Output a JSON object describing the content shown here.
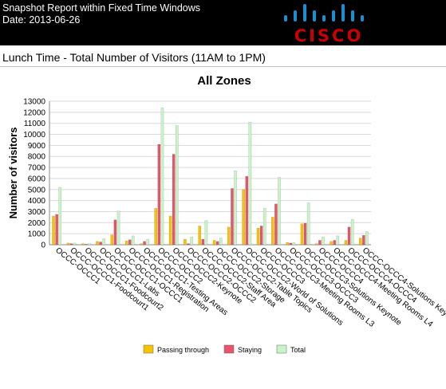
{
  "header": {
    "line1": "Snapshot Report within Fixed Time Windows",
    "line2": "Date: 2013-06-26",
    "logo_text": "CISCO",
    "bg_color": "#000000",
    "logo_color": "#cc0000",
    "logo_bars_color": "#1a8fd1"
  },
  "subtitle": "Lunch Time - Total Number of Visitors (11AM to 1PM)",
  "chart_data": {
    "type": "bar",
    "title": "All Zones",
    "xlabel": "",
    "ylabel": "Number of visitors",
    "ylim": [
      0,
      13000
    ],
    "yticks": [
      0,
      1000,
      2000,
      3000,
      4000,
      5000,
      6000,
      7000,
      8000,
      9000,
      10000,
      11000,
      12000,
      13000
    ],
    "grid": true,
    "legend_position": "bottom",
    "categories": [
      "OCCC-OCCC1",
      "OCCC-OCCC1-Foodcourt1",
      "OCCC-OCCC1-Foodcourt2",
      "OCCC-OCCC1-Labs",
      "OCCC-OCCC1-OCCC1",
      "OCCC-OCCC1-Registration",
      "OCCC-OCCC1-Testing Areas",
      "OCCC-OCCC2",
      "OCCC-OCCC2-Keynote",
      "OCCC-OCCC2-OCCC2",
      "OCCC-OCCC2-Staff Area",
      "OCCC-OCCC2-Storage",
      "OCCC-OCCC2-Table Topics",
      "OCCC-OCCC2-World of Solutions",
      "OCCC-OCCC3",
      "OCCC-OCCC3-Meeting Rooms L3",
      "OCCC-OCCC3-OCCC3",
      "OCCC-OCCC3-Solutions Keynote",
      "OCCC-OCCC4",
      "OCCC-OCCC4-Meeting Rooms L4",
      "OCCC-OCCC4-OCCC4",
      "OCCC-OCCC4-Solutions Keynote L4"
    ],
    "series": [
      {
        "name": "Passing through",
        "color": "#f5c400",
        "values": [
          2600,
          150,
          100,
          300,
          900,
          350,
          100,
          3300,
          2600,
          500,
          1700,
          400,
          1600,
          5000,
          1500,
          2500,
          200,
          1900,
          100,
          300,
          400,
          600
        ]
      },
      {
        "name": "Staying",
        "color": "#e8546a",
        "values": [
          2750,
          100,
          50,
          250,
          2250,
          450,
          300,
          9100,
          8200,
          100,
          500,
          300,
          5100,
          6200,
          1700,
          3700,
          150,
          1950,
          400,
          400,
          1600,
          850
        ]
      },
      {
        "name": "Total",
        "color": "#c8f5c8",
        "values": [
          5200,
          150,
          100,
          550,
          3050,
          800,
          500,
          12400,
          10800,
          700,
          2200,
          600,
          6700,
          11100,
          3300,
          6100,
          200,
          3800,
          700,
          800,
          2300,
          1200
        ]
      }
    ]
  }
}
